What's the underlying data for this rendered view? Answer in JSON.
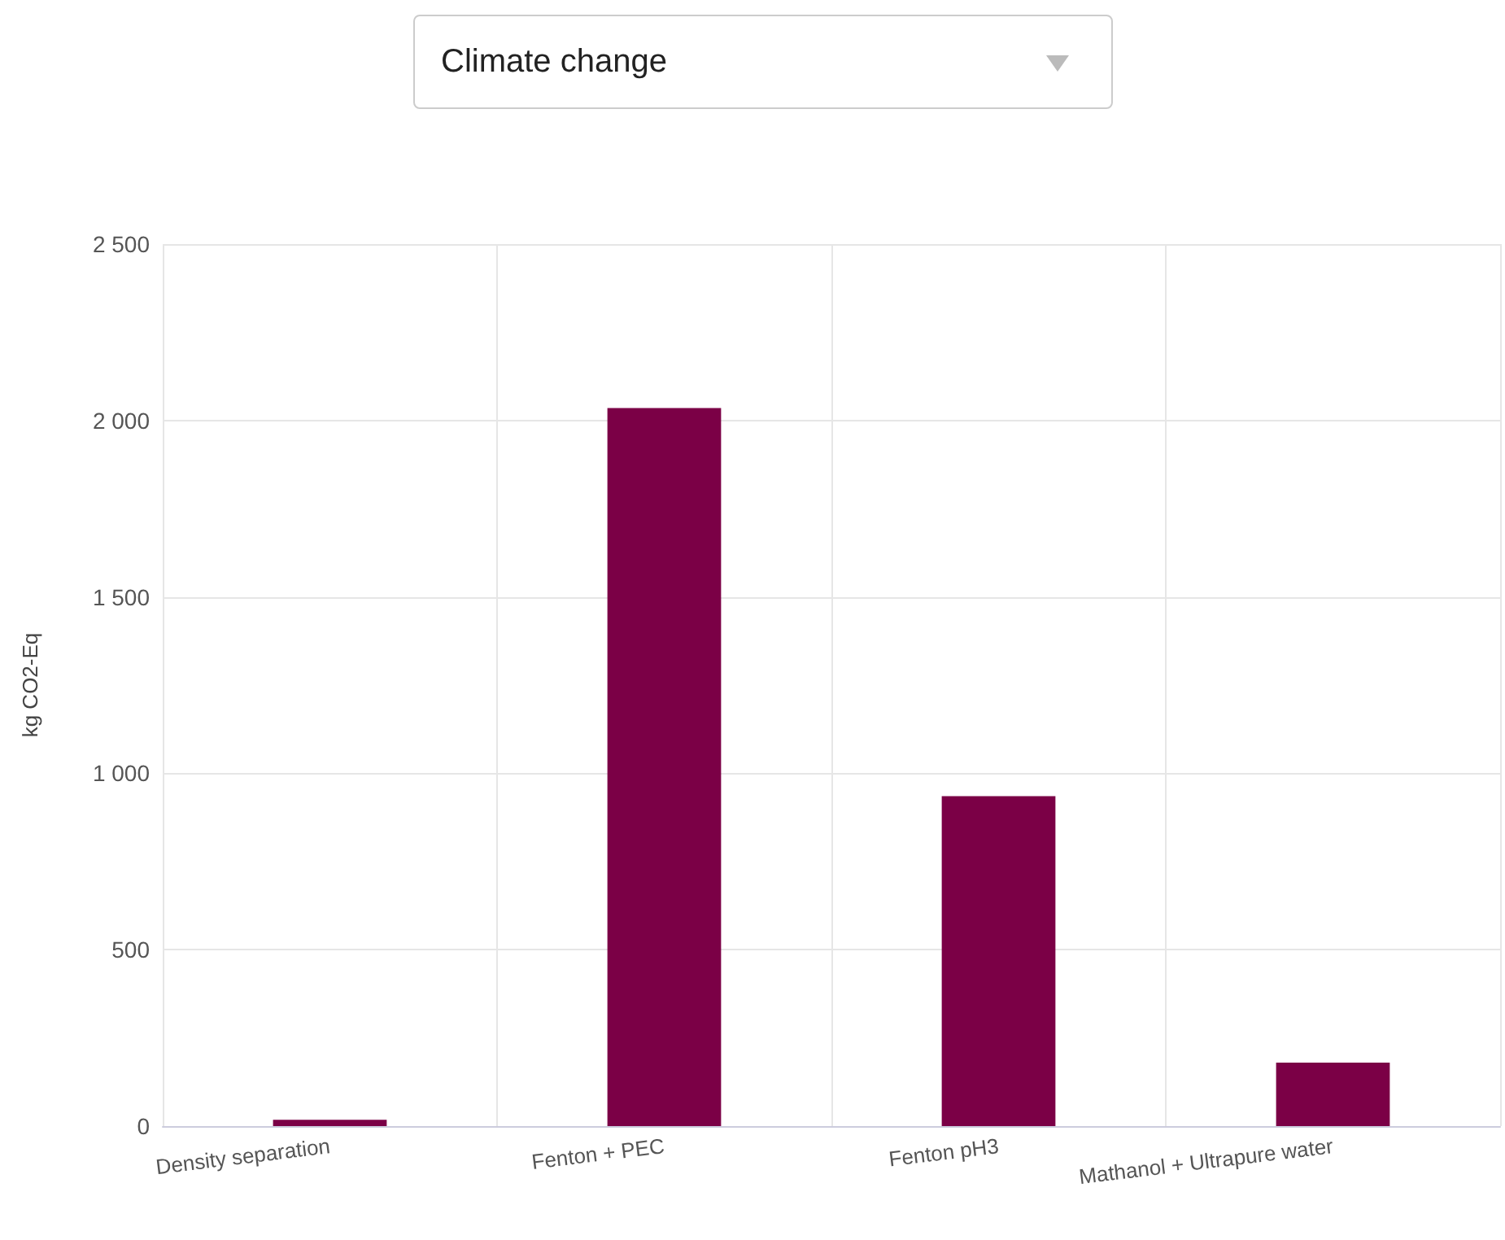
{
  "chart_data": {
    "type": "bar",
    "title": "Climate change",
    "ylabel": "kg CO2-Eq",
    "categories": [
      "Density separation",
      "Fenton + PEC",
      "Fenton pH3",
      "Mathanol + Ultrapure water"
    ],
    "values": [
      18,
      2035,
      935,
      180
    ],
    "color": "#7b0046",
    "ylim": [
      0,
      2500
    ],
    "yticks": [
      0,
      500,
      {
        "value": 1000,
        "label": "1 000"
      },
      {
        "value": 1500,
        "label": "1 500"
      },
      {
        "value": 2000,
        "label": "2 000"
      },
      {
        "value": 2500,
        "label": "2 500"
      }
    ],
    "grid": true
  }
}
